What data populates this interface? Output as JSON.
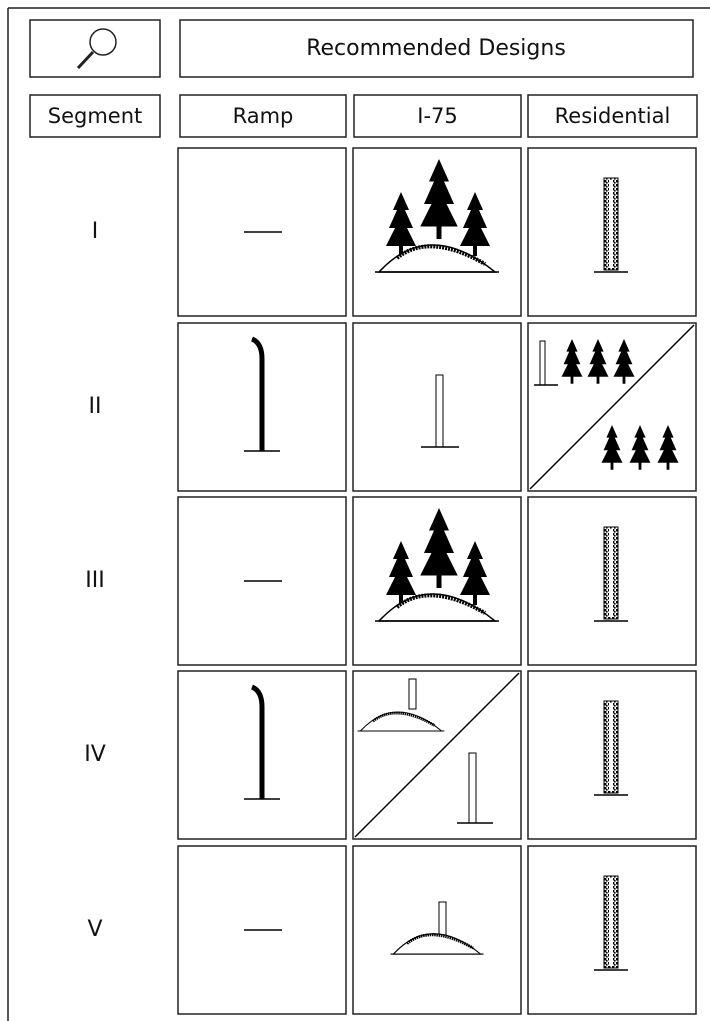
{
  "header": {
    "title": "Recommended Designs"
  },
  "table": {
    "columns": [
      "Segment",
      "Ramp",
      "I-75",
      "Residential"
    ],
    "rows": [
      "I",
      "II",
      "III",
      "IV",
      "V"
    ]
  }
}
